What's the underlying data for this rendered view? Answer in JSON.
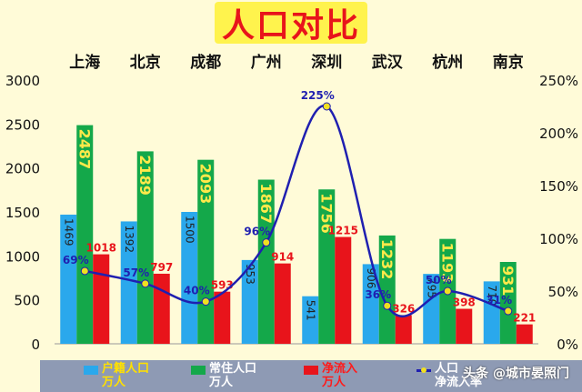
{
  "chart_data": {
    "type": "bar",
    "title": "人口对比",
    "categories": [
      "上海",
      "北京",
      "成都",
      "广州",
      "深圳",
      "武汉",
      "杭州",
      "南京"
    ],
    "series": [
      {
        "name": "户籍人口 万人",
        "type": "bar",
        "axis": "left",
        "color": "#2aa8ec",
        "values": [
          1469,
          1392,
          1500,
          953,
          541,
          906,
          795,
          710
        ],
        "labels": [
          "1469",
          "1392",
          "1500",
          "953",
          "541",
          "906",
          "795",
          "710"
        ]
      },
      {
        "name": "常住人口 万人",
        "type": "bar",
        "axis": "left",
        "color": "#14a84a",
        "values": [
          2487,
          2189,
          2093,
          1867,
          1756,
          1232,
          1193,
          931
        ],
        "labels": [
          "2487",
          "2189",
          "2093",
          "1867",
          "1756",
          "1232",
          "1193",
          "931"
        ]
      },
      {
        "name": "净流入 万人",
        "type": "bar",
        "axis": "left",
        "color": "#e8141b",
        "values": [
          1018,
          797,
          593,
          914,
          1215,
          326,
          398,
          221
        ],
        "labels": [
          "1018",
          "797",
          "593",
          "914",
          "1215",
          "326",
          "398",
          "221"
        ]
      },
      {
        "name": "人口 净流入率",
        "type": "line",
        "axis": "right",
        "color": "#1f1fb0",
        "values": [
          69,
          57,
          40,
          96,
          225,
          36,
          50,
          31
        ],
        "labels": [
          "69%",
          "57%",
          "40%",
          "96%",
          "225%",
          "36%",
          "50%",
          "31%"
        ]
      }
    ],
    "y_left": {
      "min": 0,
      "max": 3000,
      "ticks": [
        "0",
        "500",
        "1000",
        "1500",
        "2000",
        "2500",
        "3000"
      ]
    },
    "y_right": {
      "min": 0,
      "max": 250,
      "ticks": [
        "0%",
        "50%",
        "100%",
        "150%",
        "200%",
        "250%"
      ]
    },
    "xlabel": "",
    "ylabel": "",
    "legend_position": "bottom",
    "grid": false
  },
  "legend": [
    {
      "label": "户籍人口\n万人",
      "color": "#2aa8ec",
      "text_color": "#ffe000"
    },
    {
      "label": "常住人口\n万人",
      "color": "#14a84a",
      "text_color": "#ffffff"
    },
    {
      "label": "净流入\n万人",
      "color": "#e8141b",
      "text_color": "#ff1a1a"
    },
    {
      "label": "人口\n净流入率",
      "color": "#1f1fb0",
      "text_color": "#ffffff"
    }
  ],
  "watermark": {
    "text": "头条 @城市晏照门"
  }
}
